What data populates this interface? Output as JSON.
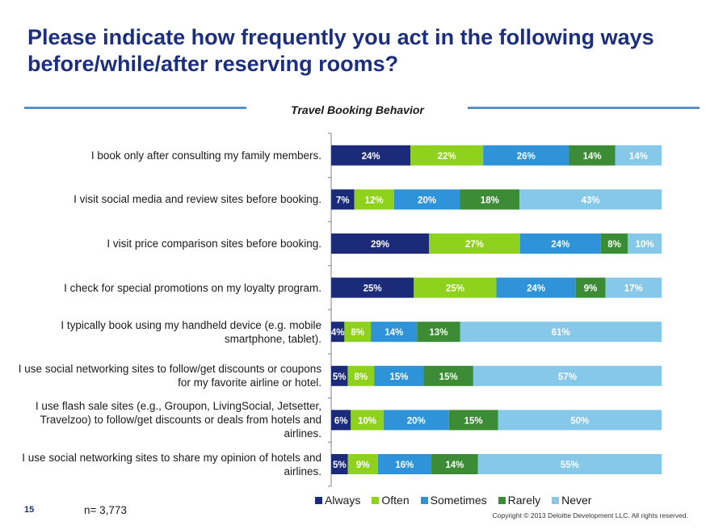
{
  "title": "Please indicate how frequently you act in the following ways before/while/after reserving rooms?",
  "page_number": "15",
  "n_label": "n= 3,773",
  "copyright": "Copyright © 2013 Deloitte Development LLC. All rights reserved.",
  "colors": {
    "Always": "#1c2a7a",
    "Often": "#8fd21e",
    "Sometimes": "#2e93d8",
    "Rarely": "#3b8c34",
    "Never": "#86c8ea"
  },
  "chart_data": {
    "type": "bar",
    "orientation": "horizontal",
    "stacked": true,
    "title": "Travel Booking Behavior",
    "categories": [
      "I book only after consulting my family members.",
      "I visit social media and review sites before booking.",
      "I visit price comparison sites before booking.",
      "I check for special promotions on my loyalty program.",
      "I typically book using my handheld device (e.g. mobile smartphone, tablet).",
      "I use social networking sites to follow/get discounts or coupons for my favorite airline or hotel.",
      "I use flash sale sites (e.g., Groupon, LivingSocial, Jetsetter, Travelzoo) to follow/get discounts or deals from hotels and airlines.",
      "I use social networking sites to share my opinion of hotels and airlines."
    ],
    "series": [
      {
        "name": "Always",
        "values": [
          24,
          7,
          29,
          25,
          4,
          5,
          6,
          5
        ]
      },
      {
        "name": "Often",
        "values": [
          22,
          12,
          27,
          25,
          8,
          8,
          10,
          9
        ]
      },
      {
        "name": "Sometimes",
        "values": [
          26,
          20,
          24,
          24,
          14,
          15,
          20,
          16
        ]
      },
      {
        "name": "Rarely",
        "values": [
          14,
          18,
          8,
          9,
          13,
          15,
          15,
          14
        ]
      },
      {
        "name": "Never",
        "values": [
          14,
          43,
          10,
          17,
          61,
          57,
          50,
          55
        ]
      }
    ],
    "value_format": "percent",
    "legend_position": "bottom",
    "xlim": [
      0,
      100
    ]
  }
}
